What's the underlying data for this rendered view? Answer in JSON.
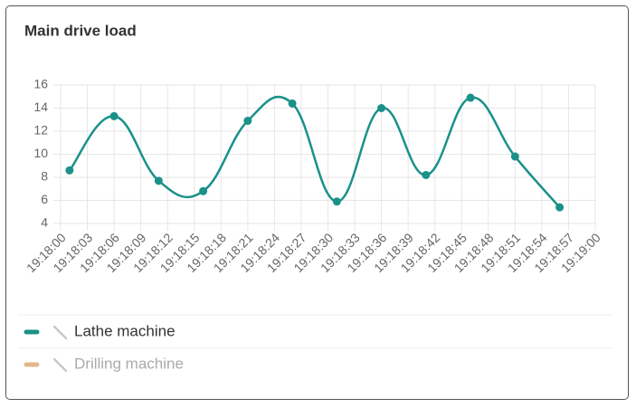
{
  "chart_data": {
    "type": "line",
    "title": "Main drive load",
    "x": [
      "19:18:01",
      "19:18:06",
      "19:18:11",
      "19:18:16",
      "19:18:21",
      "19:18:26",
      "19:18:31",
      "19:18:36",
      "19:18:41",
      "19:18:46",
      "19:18:51",
      "19:18:56"
    ],
    "xlim": [
      "19:18:00",
      "19:19:00"
    ],
    "xticks": [
      "19:18:00",
      "19:18:03",
      "19:18:06",
      "19:18:09",
      "19:18:12",
      "19:18:15",
      "19:18:18",
      "19:18:21",
      "19:18:24",
      "19:18:27",
      "19:18:30",
      "19:18:33",
      "19:18:36",
      "19:18:39",
      "19:18:42",
      "19:18:45",
      "19:18:48",
      "19:18:51",
      "19:18:54",
      "19:18:57",
      "19:19:00"
    ],
    "ylim": [
      4,
      16
    ],
    "yticks": [
      4,
      6,
      8,
      10,
      12,
      14,
      16
    ],
    "grid": true,
    "series": [
      {
        "name": "Lathe machine",
        "color": "#1a9189",
        "values": [
          8.6,
          13.3,
          7.7,
          6.8,
          12.9,
          14.4,
          5.9,
          14.0,
          8.2,
          14.9,
          9.8,
          5.4
        ]
      },
      {
        "name": "Drilling machine",
        "color": "#e0b88a",
        "hidden": true,
        "values": [
          null,
          null,
          null,
          null,
          null,
          null,
          null,
          null,
          null,
          null,
          null,
          null
        ]
      }
    ]
  }
}
